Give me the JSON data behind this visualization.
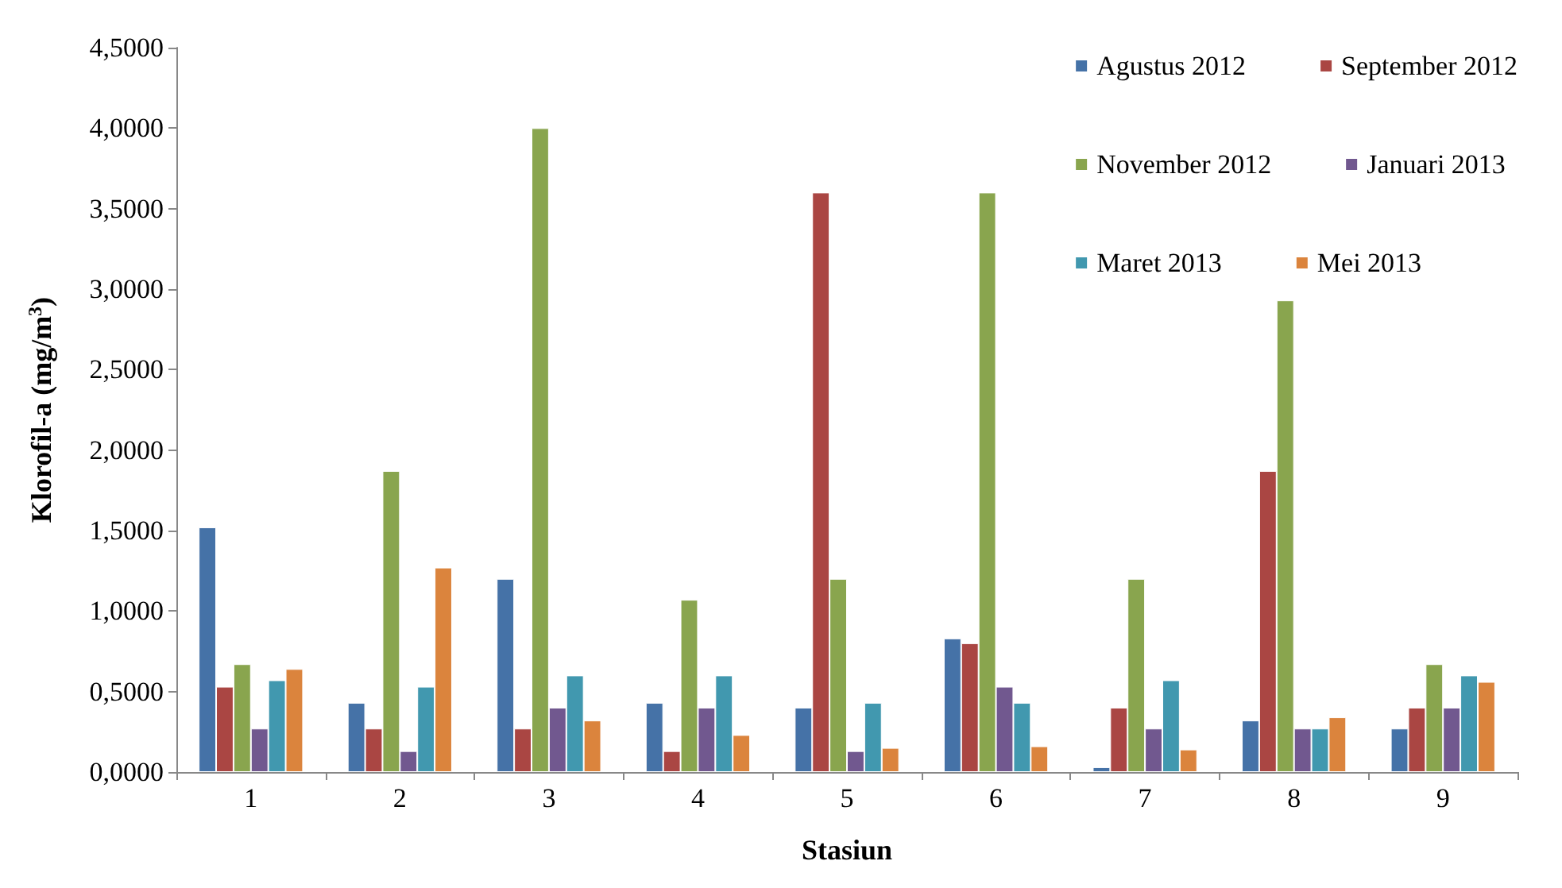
{
  "chart_data": {
    "type": "bar",
    "xlabel": "Stasiun",
    "ylabel": "Klorofil-a (mg/m$^{3}$)",
    "categories": [
      "1",
      "2",
      "3",
      "4",
      "5",
      "6",
      "7",
      "8",
      "9"
    ],
    "series": [
      {
        "name": "Agustus 2012",
        "color": "#4572a7",
        "values": [
          1.52,
          0.43,
          1.2,
          0.43,
          0.4,
          0.83,
          0.03,
          0.32,
          0.27
        ]
      },
      {
        "name": "September 2012",
        "color": "#aa4643",
        "values": [
          0.53,
          0.27,
          0.27,
          0.13,
          3.6,
          0.8,
          0.4,
          1.87,
          0.4
        ]
      },
      {
        "name": "November 2012",
        "color": "#89a54e",
        "values": [
          0.67,
          1.87,
          4.0,
          1.07,
          1.2,
          3.6,
          1.2,
          2.93,
          0.67
        ]
      },
      {
        "name": "Januari 2013",
        "color": "#71588f",
        "values": [
          0.27,
          0.13,
          0.4,
          0.4,
          0.13,
          0.53,
          0.27,
          0.27,
          0.4
        ]
      },
      {
        "name": "Maret 2013",
        "color": "#4198af",
        "values": [
          0.57,
          0.53,
          0.6,
          0.6,
          0.43,
          0.43,
          0.57,
          0.27,
          0.6
        ]
      },
      {
        "name": "Mei 2013",
        "color": "#db843d",
        "values": [
          0.64,
          1.27,
          0.32,
          0.23,
          0.15,
          0.16,
          0.14,
          0.34,
          0.56
        ]
      }
    ],
    "ylim": [
      0,
      4.5
    ],
    "yticks": [
      {
        "value": 0,
        "label": "0,0000"
      },
      {
        "value": 0.5,
        "label": "0,5000"
      },
      {
        "value": 1,
        "label": "1,0000"
      },
      {
        "value": 1.5,
        "label": "1,5000"
      },
      {
        "value": 2,
        "label": "2,0000"
      },
      {
        "value": 2.5,
        "label": "2,5000"
      },
      {
        "value": 3,
        "label": "3,0000"
      },
      {
        "value": 3.5,
        "label": "3,5000"
      },
      {
        "value": 4,
        "label": "4,0000"
      },
      {
        "value": 4.5,
        "label": "4,5000"
      }
    ],
    "grid": false,
    "legend": "top right"
  }
}
